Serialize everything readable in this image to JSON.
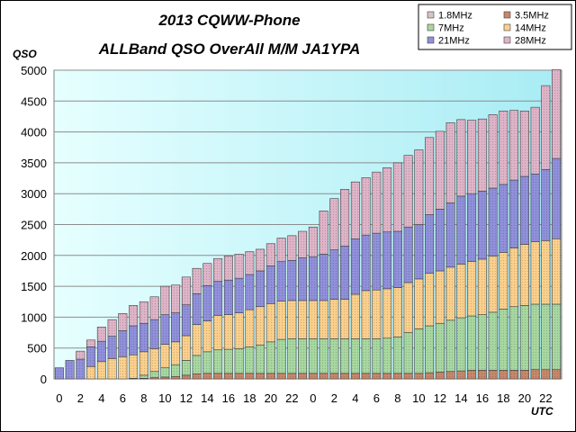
{
  "chart_data": {
    "type": "bar",
    "stacked": true,
    "title_line1": "2013 CQWW-Phone",
    "title_line2": "ALLBand QSO OverAll M/M JA1YPA",
    "ylabel": "QSO",
    "xlabel": "UTC",
    "ylim": [
      0,
      5000
    ],
    "yticks": [
      0,
      500,
      1000,
      1500,
      2000,
      2500,
      3000,
      3500,
      4000,
      4500,
      5000
    ],
    "xtick_labels": [
      "0",
      "2",
      "4",
      "6",
      "8",
      "10",
      "12",
      "14",
      "16",
      "18",
      "20",
      "22",
      "0",
      "2",
      "4",
      "6",
      "8",
      "10",
      "12",
      "14",
      "16",
      "18",
      "20",
      "22"
    ],
    "grid": true,
    "legend_position": "top-right",
    "categories": [
      "0",
      "1",
      "2",
      "3",
      "4",
      "5",
      "6",
      "7",
      "8",
      "9",
      "10",
      "11",
      "12",
      "13",
      "14",
      "15",
      "16",
      "17",
      "18",
      "19",
      "20",
      "21",
      "22",
      "23",
      "0",
      "1",
      "2",
      "3",
      "4",
      "5",
      "6",
      "7",
      "8",
      "9",
      "10",
      "11",
      "12",
      "13",
      "14",
      "15",
      "16",
      "17",
      "18",
      "19",
      "20",
      "21",
      "22",
      "23"
    ],
    "series": [
      {
        "name": "1.8MHz",
        "color": "#d4c4c4",
        "values": [
          0,
          0,
          0,
          0,
          0,
          0,
          0,
          0,
          0,
          0,
          0,
          0,
          0,
          0,
          0,
          0,
          0,
          0,
          0,
          0,
          0,
          0,
          0,
          0,
          0,
          0,
          0,
          0,
          0,
          0,
          0,
          0,
          0,
          0,
          0,
          0,
          0,
          0,
          0,
          0,
          0,
          0,
          0,
          0,
          0,
          0,
          0,
          0
        ]
      },
      {
        "name": "3.5MHz",
        "color": "#c8876a",
        "values": [
          0,
          0,
          0,
          0,
          0,
          0,
          0,
          0,
          10,
          20,
          30,
          40,
          60,
          80,
          90,
          90,
          90,
          90,
          90,
          90,
          90,
          90,
          90,
          90,
          90,
          90,
          90,
          90,
          90,
          90,
          90,
          90,
          90,
          90,
          90,
          100,
          110,
          120,
          130,
          140,
          140,
          140,
          140,
          140,
          140,
          150,
          150,
          150
        ]
      },
      {
        "name": "7MHz",
        "color": "#a8d8a0",
        "values": [
          0,
          0,
          0,
          0,
          0,
          0,
          0,
          10,
          50,
          100,
          150,
          190,
          240,
          300,
          350,
          380,
          390,
          400,
          430,
          460,
          510,
          550,
          560,
          560,
          560,
          560,
          560,
          560,
          560,
          560,
          560,
          570,
          590,
          660,
          720,
          760,
          790,
          830,
          860,
          880,
          900,
          940,
          990,
          1030,
          1050,
          1060,
          1060,
          1060
        ]
      },
      {
        "name": "14MHz",
        "color": "#fcd08c",
        "values": [
          0,
          0,
          0,
          200,
          280,
          330,
          360,
          380,
          380,
          370,
          380,
          370,
          400,
          500,
          500,
          560,
          560,
          580,
          600,
          620,
          620,
          620,
          620,
          620,
          620,
          620,
          640,
          640,
          720,
          780,
          790,
          800,
          800,
          810,
          810,
          850,
          850,
          860,
          870,
          880,
          900,
          910,
          920,
          950,
          990,
          1010,
          1030,
          1060
        ]
      },
      {
        "name": "21MHz",
        "color": "#9090dc",
        "values": [
          180,
          300,
          320,
          320,
          330,
          360,
          420,
          470,
          460,
          470,
          480,
          470,
          500,
          500,
          570,
          550,
          560,
          560,
          570,
          580,
          610,
          640,
          650,
          690,
          710,
          750,
          800,
          860,
          900,
          900,
          920,
          920,
          910,
          900,
          880,
          950,
          1000,
          1040,
          1100,
          1100,
          1100,
          1100,
          1100,
          1100,
          1100,
          1100,
          1150,
          1300
        ]
      },
      {
        "name": "28MHz",
        "color": "#e0b4c8",
        "values": [
          0,
          0,
          130,
          110,
          230,
          270,
          280,
          330,
          350,
          370,
          460,
          450,
          450,
          410,
          360,
          370,
          390,
          390,
          370,
          350,
          360,
          380,
          400,
          430,
          480,
          700,
          830,
          920,
          920,
          930,
          990,
          1040,
          1110,
          1160,
          1210,
          1250,
          1260,
          1300,
          1240,
          1190,
          1170,
          1190,
          1190,
          1130,
          1060,
          1080,
          1360,
          1440
        ]
      }
    ]
  }
}
